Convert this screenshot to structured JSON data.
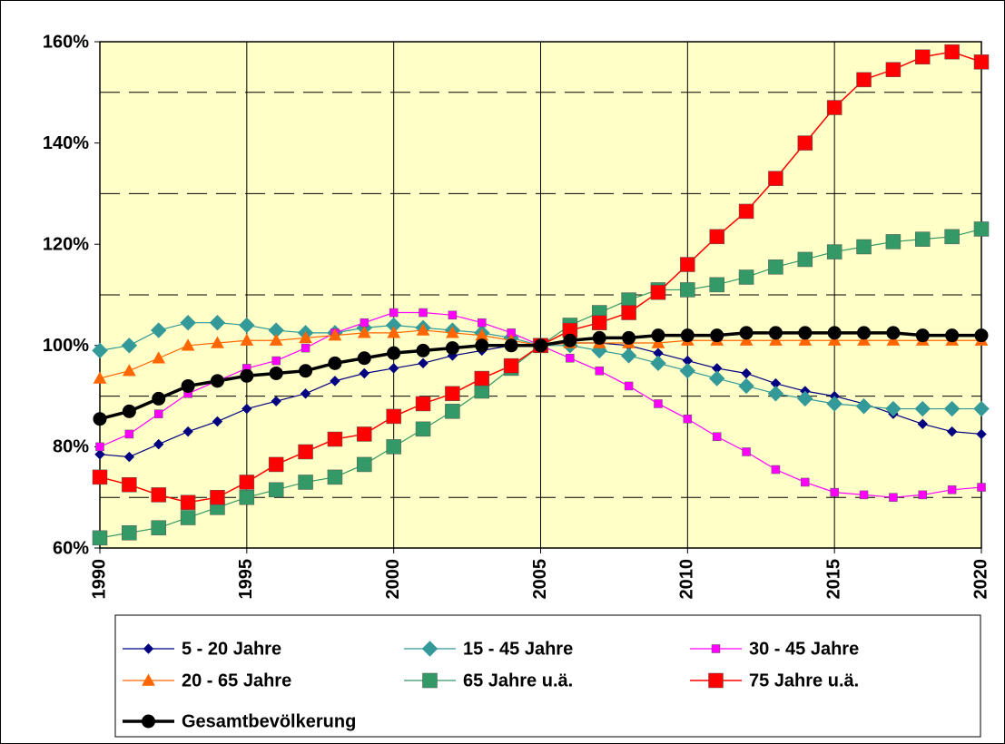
{
  "chart_data": {
    "type": "line",
    "x": [
      1990,
      1991,
      1992,
      1993,
      1994,
      1995,
      1996,
      1997,
      1998,
      1999,
      2000,
      2001,
      2002,
      2003,
      2004,
      2005,
      2006,
      2007,
      2008,
      2009,
      2010,
      2011,
      2012,
      2013,
      2014,
      2015,
      2016,
      2017,
      2018,
      2019,
      2020
    ],
    "xlim": [
      1990,
      2020
    ],
    "xticks": [
      1990,
      1995,
      2000,
      2005,
      2010,
      2015,
      2020
    ],
    "ylim": [
      60,
      160
    ],
    "yticks": [
      {
        "value": 60,
        "label": "60%"
      },
      {
        "value": 80,
        "label": "80%"
      },
      {
        "value": 100,
        "label": "100%"
      },
      {
        "value": 120,
        "label": "120%"
      },
      {
        "value": 140,
        "label": "140%"
      },
      {
        "value": 160,
        "label": "160%"
      }
    ],
    "minor_yticks": [
      70,
      90,
      110,
      130,
      150
    ],
    "grid": true,
    "background": "#ffffc8",
    "series": [
      {
        "name": "5 - 20 Jahre",
        "color": "#000080",
        "marker": "diamond",
        "values": [
          78.5,
          78,
          80.5,
          83,
          85,
          87.5,
          89,
          90.5,
          93,
          94.5,
          95.5,
          96.5,
          98,
          99,
          100,
          100,
          100.5,
          100.5,
          100,
          98.5,
          97,
          95.5,
          94.5,
          92.5,
          91,
          90,
          88.5,
          86.5,
          84.5,
          83,
          82.5
        ]
      },
      {
        "name": "15 - 45 Jahre",
        "color": "#339999",
        "marker": "diamond",
        "values": [
          99,
          100,
          103,
          104.5,
          104.5,
          104,
          103,
          102.5,
          102.5,
          103.5,
          104,
          103.5,
          103,
          102.5,
          101.5,
          100,
          100,
          99,
          98,
          96.5,
          95,
          93.5,
          92,
          90.5,
          89.5,
          88.5,
          88,
          87.5,
          87.5,
          87.5,
          87.5
        ]
      },
      {
        "name": "30 - 45 Jahre",
        "color": "#ff00ff",
        "marker": "square",
        "values": [
          80,
          82.5,
          86.5,
          90.5,
          93,
          95.5,
          97,
          99.5,
          102.5,
          104.5,
          106.5,
          106.5,
          106,
          104.5,
          102.5,
          100,
          97.5,
          95,
          92,
          88.5,
          85.5,
          82,
          79,
          75.5,
          73,
          71,
          70.5,
          70,
          70.5,
          71.5,
          72
        ]
      },
      {
        "name": "20 - 65 Jahre",
        "color": "#ff6600",
        "marker": "triangle",
        "values": [
          93.5,
          95,
          97.5,
          100,
          100.5,
          101,
          101,
          101.5,
          102,
          102.5,
          102.5,
          103,
          102.5,
          102,
          101,
          100,
          100.5,
          100.5,
          100.5,
          100.5,
          101,
          101,
          101,
          101,
          101,
          101,
          101,
          101,
          101,
          101,
          101
        ]
      },
      {
        "name": "65 Jahre u.ä.",
        "color": "#339966",
        "marker": "square",
        "values": [
          62,
          63,
          64,
          66,
          68,
          70,
          71.5,
          73,
          74,
          76.5,
          80,
          83.5,
          87,
          91,
          95.5,
          100,
          104,
          106.5,
          109,
          111,
          111,
          112,
          113.5,
          115.5,
          117,
          118.5,
          119.5,
          120.5,
          121,
          121.5,
          123
        ]
      },
      {
        "name": "75 Jahre u.ä.",
        "color": "#ff0000",
        "marker": "square",
        "values": [
          74,
          72.5,
          70.5,
          69,
          70,
          73,
          76.5,
          79,
          81.5,
          82.5,
          86,
          88.5,
          90.5,
          93.5,
          96,
          100,
          103,
          104.5,
          106.5,
          110.5,
          116,
          121.5,
          126.5,
          133,
          140,
          147,
          152.5,
          154.5,
          157,
          158,
          156
        ]
      },
      {
        "name": "Gesamtbevölkerung",
        "color": "#000000",
        "marker": "circle",
        "values": [
          85.5,
          87,
          89.5,
          92,
          93,
          94,
          94.5,
          95,
          96.5,
          97.5,
          98.5,
          99,
          99.5,
          100,
          100,
          100,
          101,
          101.5,
          101.5,
          102,
          102,
          102,
          102.5,
          102.5,
          102.5,
          102.5,
          102.5,
          102.5,
          102,
          102,
          102
        ]
      }
    ]
  }
}
